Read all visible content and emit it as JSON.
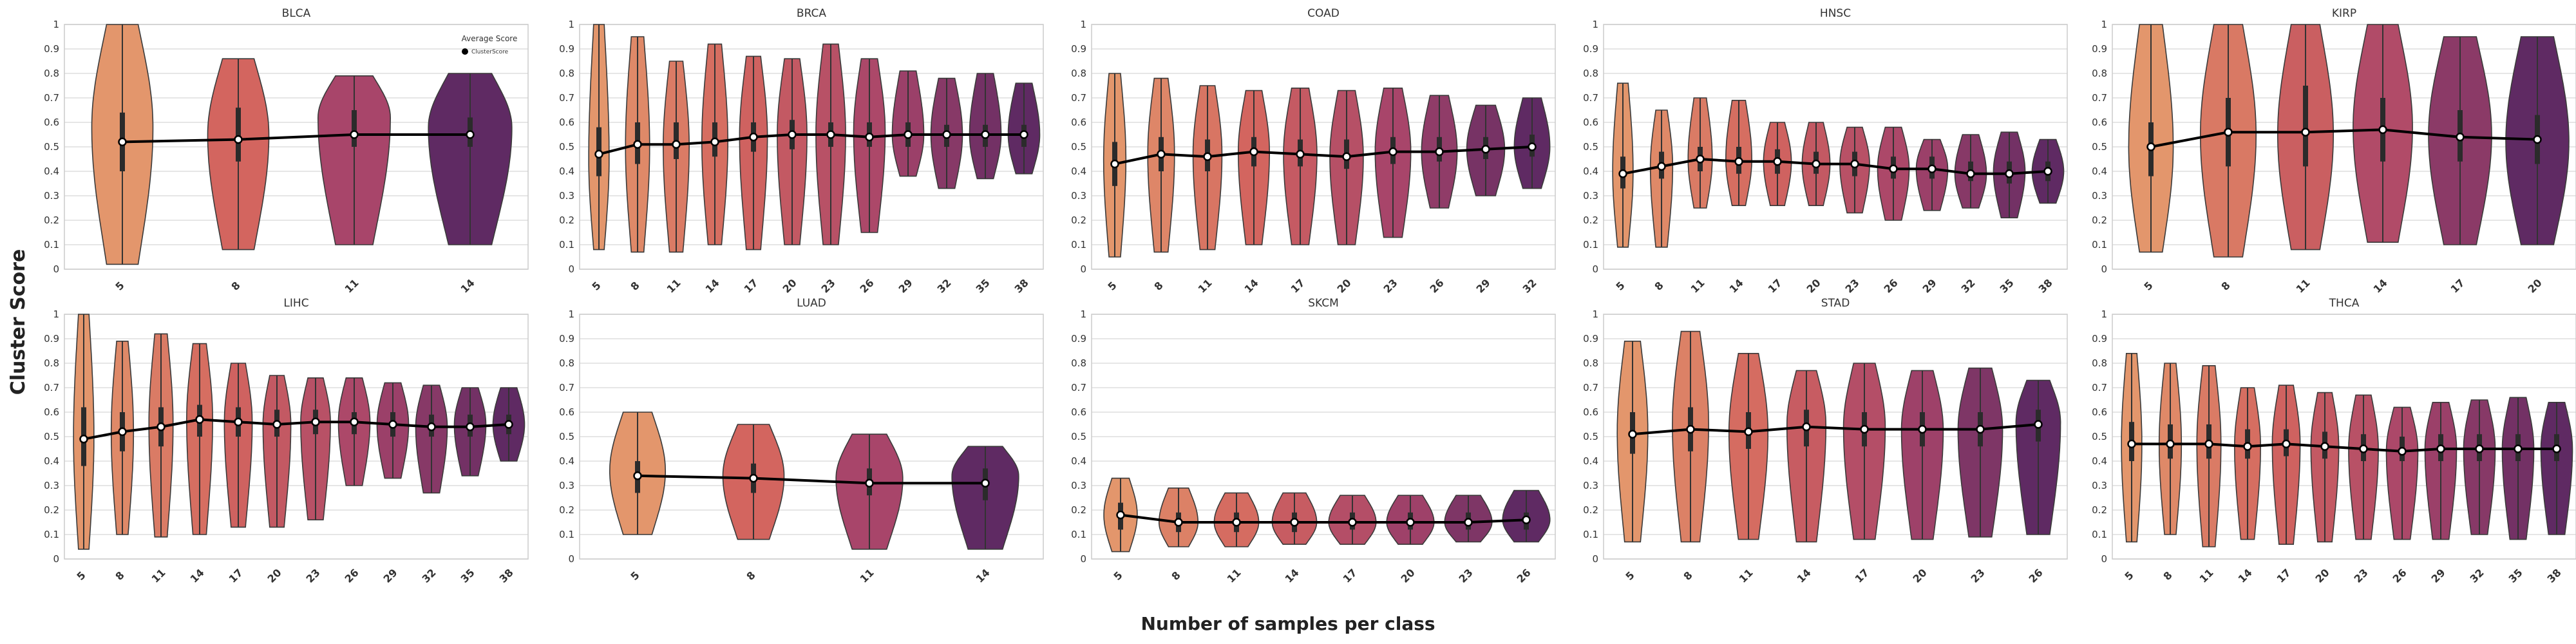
{
  "figure": {
    "ylabel": "Cluster Score",
    "xlabel": "Number of samples per class",
    "legend": {
      "title": "Average Score",
      "entry": "ClusterScore",
      "placement": "top-right of BLCA panel"
    },
    "colors": {
      "light": "#e3966c",
      "mid1": "#d3655f",
      "mid2": "#a8456a",
      "dark": "#5f2a63",
      "line": "#000000",
      "grid": "#dddddd"
    }
  },
  "chart_data": [
    {
      "type": "violin",
      "title": "BLCA",
      "ylim": [
        0,
        1
      ],
      "yticks": [
        "0",
        "0.1",
        "0.2",
        "0.3",
        "0.4",
        "0.5",
        "0.6",
        "0.7",
        "0.8",
        "0.9",
        "1"
      ],
      "grid": true,
      "categories": [
        "5",
        "8",
        "11",
        "14"
      ],
      "mean": [
        0.52,
        0.53,
        0.55,
        0.55
      ],
      "min": [
        0.02,
        0.08,
        0.1,
        0.1
      ],
      "max": [
        1.0,
        0.86,
        0.79,
        0.8
      ],
      "q1": [
        0.4,
        0.44,
        0.5,
        0.5
      ],
      "q3": [
        0.64,
        0.66,
        0.65,
        0.62
      ],
      "mode": [
        0.58,
        0.55,
        0.62,
        0.58
      ],
      "width": [
        0.55,
        0.55,
        0.65,
        0.75
      ]
    },
    {
      "type": "violin",
      "title": "BRCA",
      "ylim": [
        0,
        1
      ],
      "yticks": [
        "0",
        "0.1",
        "0.2",
        "0.3",
        "0.4",
        "0.5",
        "0.6",
        "0.7",
        "0.8",
        "0.9",
        "1"
      ],
      "grid": true,
      "categories": [
        "5",
        "8",
        "11",
        "14",
        "17",
        "20",
        "23",
        "26",
        "29",
        "32",
        "35",
        "38"
      ],
      "mean": [
        0.47,
        0.51,
        0.51,
        0.52,
        0.54,
        0.55,
        0.55,
        0.54,
        0.55,
        0.55,
        0.55,
        0.55
      ],
      "min": [
        0.08,
        0.07,
        0.07,
        0.1,
        0.08,
        0.1,
        0.1,
        0.15,
        0.38,
        0.33,
        0.37,
        0.39
      ],
      "max": [
        1.0,
        0.95,
        0.85,
        0.92,
        0.87,
        0.86,
        0.92,
        0.86,
        0.81,
        0.78,
        0.8,
        0.76
      ],
      "q1": [
        0.38,
        0.43,
        0.45,
        0.46,
        0.48,
        0.49,
        0.5,
        0.5,
        0.5,
        0.5,
        0.5,
        0.5
      ],
      "q3": [
        0.58,
        0.6,
        0.6,
        0.6,
        0.6,
        0.61,
        0.6,
        0.6,
        0.6,
        0.59,
        0.59,
        0.59
      ],
      "mode": [
        0.45,
        0.5,
        0.5,
        0.52,
        0.54,
        0.55,
        0.55,
        0.56,
        0.55,
        0.55,
        0.55,
        0.55
      ],
      "width": [
        0.55,
        0.65,
        0.7,
        0.7,
        0.75,
        0.8,
        0.8,
        0.85,
        0.85,
        0.85,
        0.85,
        0.85
      ]
    },
    {
      "type": "violin",
      "title": "COAD",
      "ylim": [
        0,
        1
      ],
      "yticks": [
        "0",
        "0.1",
        "0.2",
        "0.3",
        "0.4",
        "0.5",
        "0.6",
        "0.7",
        "0.8",
        "0.9",
        "1"
      ],
      "grid": true,
      "categories": [
        "5",
        "8",
        "11",
        "14",
        "17",
        "20",
        "23",
        "26",
        "29",
        "32"
      ],
      "mean": [
        0.43,
        0.47,
        0.46,
        0.48,
        0.47,
        0.46,
        0.48,
        0.48,
        0.49,
        0.5
      ],
      "min": [
        0.05,
        0.07,
        0.08,
        0.1,
        0.1,
        0.1,
        0.13,
        0.25,
        0.3,
        0.33
      ],
      "max": [
        0.8,
        0.78,
        0.75,
        0.73,
        0.74,
        0.73,
        0.74,
        0.71,
        0.67,
        0.7
      ],
      "q1": [
        0.34,
        0.4,
        0.4,
        0.42,
        0.42,
        0.41,
        0.43,
        0.44,
        0.45,
        0.46
      ],
      "q3": [
        0.52,
        0.54,
        0.53,
        0.54,
        0.53,
        0.53,
        0.54,
        0.54,
        0.54,
        0.55
      ],
      "mode": [
        0.45,
        0.47,
        0.47,
        0.48,
        0.47,
        0.46,
        0.48,
        0.48,
        0.49,
        0.5
      ],
      "width": [
        0.5,
        0.6,
        0.65,
        0.7,
        0.75,
        0.75,
        0.8,
        0.8,
        0.85,
        0.8
      ]
    },
    {
      "type": "violin",
      "title": "HNSC",
      "ylim": [
        0,
        1
      ],
      "yticks": [
        "0",
        "0.1",
        "0.2",
        "0.3",
        "0.4",
        "0.5",
        "0.6",
        "0.7",
        "0.8",
        "0.9",
        "1"
      ],
      "grid": true,
      "categories": [
        "5",
        "8",
        "11",
        "14",
        "17",
        "20",
        "23",
        "26",
        "29",
        "32",
        "35",
        "38"
      ],
      "mean": [
        0.39,
        0.42,
        0.45,
        0.44,
        0.44,
        0.43,
        0.43,
        0.41,
        0.41,
        0.39,
        0.39,
        0.4
      ],
      "min": [
        0.09,
        0.09,
        0.25,
        0.26,
        0.26,
        0.26,
        0.23,
        0.2,
        0.24,
        0.25,
        0.21,
        0.27
      ],
      "max": [
        0.76,
        0.65,
        0.7,
        0.69,
        0.6,
        0.6,
        0.58,
        0.58,
        0.53,
        0.55,
        0.56,
        0.53
      ],
      "q1": [
        0.33,
        0.37,
        0.4,
        0.39,
        0.39,
        0.39,
        0.38,
        0.37,
        0.37,
        0.36,
        0.35,
        0.36
      ],
      "q3": [
        0.46,
        0.48,
        0.5,
        0.5,
        0.49,
        0.48,
        0.48,
        0.46,
        0.46,
        0.44,
        0.44,
        0.44
      ],
      "mode": [
        0.4,
        0.42,
        0.45,
        0.45,
        0.44,
        0.43,
        0.43,
        0.41,
        0.41,
        0.39,
        0.4,
        0.4
      ],
      "width": [
        0.55,
        0.6,
        0.65,
        0.7,
        0.75,
        0.75,
        0.8,
        0.85,
        0.85,
        0.85,
        0.85,
        0.85
      ]
    },
    {
      "type": "violin",
      "title": "KIRP",
      "ylim": [
        0,
        1
      ],
      "yticks": [
        "0",
        "0.1",
        "0.2",
        "0.3",
        "0.4",
        "0.5",
        "0.6",
        "0.7",
        "0.8",
        "0.9",
        "1"
      ],
      "grid": true,
      "categories": [
        "5",
        "8",
        "11",
        "14",
        "17",
        "20"
      ],
      "mean": [
        0.5,
        0.56,
        0.56,
        0.57,
        0.54,
        0.53
      ],
      "min": [
        0.07,
        0.05,
        0.08,
        0.11,
        0.1,
        0.1
      ],
      "max": [
        1.0,
        1.0,
        1.0,
        1.0,
        0.95,
        0.95
      ],
      "q1": [
        0.38,
        0.42,
        0.42,
        0.44,
        0.44,
        0.43
      ],
      "q3": [
        0.6,
        0.7,
        0.75,
        0.7,
        0.65,
        0.63
      ],
      "mode": [
        0.5,
        0.55,
        0.55,
        0.58,
        0.55,
        0.52
      ],
      "width": [
        0.6,
        0.75,
        0.75,
        0.8,
        0.85,
        0.85
      ]
    },
    {
      "type": "violin",
      "title": "LIHC",
      "ylim": [
        0,
        1
      ],
      "yticks": [
        "0",
        "0.1",
        "0.2",
        "0.3",
        "0.4",
        "0.5",
        "0.6",
        "0.7",
        "0.8",
        "0.9",
        "1"
      ],
      "grid": true,
      "categories": [
        "5",
        "8",
        "11",
        "14",
        "17",
        "20",
        "23",
        "26",
        "29",
        "32",
        "35",
        "38"
      ],
      "mean": [
        0.49,
        0.52,
        0.54,
        0.57,
        0.56,
        0.55,
        0.56,
        0.56,
        0.55,
        0.54,
        0.54,
        0.55
      ],
      "min": [
        0.04,
        0.1,
        0.09,
        0.1,
        0.13,
        0.13,
        0.16,
        0.3,
        0.33,
        0.27,
        0.34,
        0.4
      ],
      "max": [
        1.0,
        0.89,
        0.92,
        0.88,
        0.8,
        0.75,
        0.74,
        0.74,
        0.72,
        0.71,
        0.7,
        0.7
      ],
      "q1": [
        0.38,
        0.44,
        0.46,
        0.5,
        0.5,
        0.5,
        0.51,
        0.51,
        0.5,
        0.5,
        0.5,
        0.51
      ],
      "q3": [
        0.62,
        0.6,
        0.62,
        0.63,
        0.62,
        0.61,
        0.61,
        0.6,
        0.6,
        0.59,
        0.59,
        0.59
      ],
      "mode": [
        0.5,
        0.52,
        0.55,
        0.57,
        0.56,
        0.55,
        0.56,
        0.56,
        0.55,
        0.54,
        0.55,
        0.55
      ],
      "width": [
        0.55,
        0.6,
        0.65,
        0.7,
        0.75,
        0.75,
        0.8,
        0.85,
        0.85,
        0.85,
        0.85,
        0.85
      ]
    },
    {
      "type": "violin",
      "title": "LUAD",
      "ylim": [
        0,
        1
      ],
      "yticks": [
        "0",
        "0.1",
        "0.2",
        "0.3",
        "0.4",
        "0.5",
        "0.6",
        "0.7",
        "0.8",
        "0.9",
        "1"
      ],
      "grid": true,
      "categories": [
        "5",
        "8",
        "11",
        "14"
      ],
      "mean": [
        0.34,
        0.33,
        0.31,
        0.31
      ],
      "min": [
        0.1,
        0.08,
        0.04,
        0.04
      ],
      "max": [
        0.6,
        0.55,
        0.51,
        0.46
      ],
      "q1": [
        0.27,
        0.27,
        0.26,
        0.24
      ],
      "q3": [
        0.4,
        0.39,
        0.37,
        0.37
      ],
      "mode": [
        0.36,
        0.34,
        0.33,
        0.34
      ],
      "width": [
        0.5,
        0.55,
        0.6,
        0.6
      ]
    },
    {
      "type": "violin",
      "title": "SKCM",
      "ylim": [
        0,
        1
      ],
      "yticks": [
        "0",
        "0.1",
        "0.2",
        "0.3",
        "0.4",
        "0.5",
        "0.6",
        "0.7",
        "0.8",
        "0.9",
        "1"
      ],
      "grid": true,
      "categories": [
        "5",
        "8",
        "11",
        "14",
        "17",
        "20",
        "23",
        "26"
      ],
      "mean": [
        0.18,
        0.15,
        0.15,
        0.15,
        0.15,
        0.15,
        0.15,
        0.16
      ],
      "min": [
        0.03,
        0.05,
        0.05,
        0.06,
        0.06,
        0.06,
        0.07,
        0.07
      ],
      "max": [
        0.33,
        0.29,
        0.27,
        0.27,
        0.26,
        0.26,
        0.26,
        0.28
      ],
      "q1": [
        0.12,
        0.11,
        0.11,
        0.11,
        0.12,
        0.12,
        0.12,
        0.12
      ],
      "q3": [
        0.23,
        0.19,
        0.19,
        0.19,
        0.19,
        0.19,
        0.19,
        0.19
      ],
      "mode": [
        0.18,
        0.15,
        0.15,
        0.15,
        0.15,
        0.15,
        0.15,
        0.16
      ],
      "width": [
        0.6,
        0.7,
        0.8,
        0.8,
        0.85,
        0.85,
        0.85,
        0.85
      ]
    },
    {
      "type": "violin",
      "title": "STAD",
      "ylim": [
        0,
        1
      ],
      "yticks": [
        "0",
        "0.1",
        "0.2",
        "0.3",
        "0.4",
        "0.5",
        "0.6",
        "0.7",
        "0.8",
        "0.9",
        "1"
      ],
      "grid": true,
      "categories": [
        "5",
        "8",
        "11",
        "14",
        "17",
        "20",
        "23",
        "26"
      ],
      "mean": [
        0.51,
        0.53,
        0.52,
        0.54,
        0.53,
        0.53,
        0.53,
        0.55
      ],
      "min": [
        0.07,
        0.07,
        0.08,
        0.07,
        0.08,
        0.08,
        0.09,
        0.1
      ],
      "max": [
        0.89,
        0.93,
        0.84,
        0.77,
        0.8,
        0.77,
        0.78,
        0.73
      ],
      "q1": [
        0.43,
        0.44,
        0.45,
        0.46,
        0.46,
        0.46,
        0.46,
        0.48
      ],
      "q3": [
        0.6,
        0.62,
        0.6,
        0.61,
        0.6,
        0.6,
        0.6,
        0.61
      ],
      "mode": [
        0.52,
        0.55,
        0.52,
        0.55,
        0.54,
        0.53,
        0.53,
        0.56
      ],
      "width": [
        0.55,
        0.65,
        0.7,
        0.7,
        0.75,
        0.75,
        0.8,
        0.8
      ]
    },
    {
      "type": "violin",
      "title": "THCA",
      "ylim": [
        0,
        1
      ],
      "yticks": [
        "0",
        "0.1",
        "0.2",
        "0.3",
        "0.4",
        "0.5",
        "0.6",
        "0.7",
        "0.8",
        "0.9",
        "1"
      ],
      "grid": true,
      "categories": [
        "5",
        "8",
        "11",
        "14",
        "17",
        "20",
        "23",
        "26",
        "29",
        "32",
        "35",
        "38"
      ],
      "mean": [
        0.47,
        0.47,
        0.47,
        0.46,
        0.47,
        0.46,
        0.45,
        0.44,
        0.45,
        0.45,
        0.45,
        0.45
      ],
      "min": [
        0.07,
        0.1,
        0.05,
        0.08,
        0.06,
        0.07,
        0.08,
        0.08,
        0.08,
        0.1,
        0.08,
        0.1
      ],
      "max": [
        0.84,
        0.8,
        0.79,
        0.7,
        0.71,
        0.68,
        0.67,
        0.62,
        0.64,
        0.65,
        0.66,
        0.64
      ],
      "q1": [
        0.4,
        0.41,
        0.41,
        0.41,
        0.42,
        0.41,
        0.4,
        0.4,
        0.4,
        0.4,
        0.4,
        0.4
      ],
      "q3": [
        0.56,
        0.55,
        0.55,
        0.53,
        0.53,
        0.52,
        0.51,
        0.5,
        0.51,
        0.51,
        0.51,
        0.51
      ],
      "mode": [
        0.47,
        0.47,
        0.47,
        0.46,
        0.47,
        0.46,
        0.45,
        0.44,
        0.45,
        0.45,
        0.45,
        0.45
      ],
      "width": [
        0.55,
        0.6,
        0.65,
        0.7,
        0.75,
        0.75,
        0.8,
        0.85,
        0.85,
        0.85,
        0.85,
        0.85
      ]
    }
  ]
}
